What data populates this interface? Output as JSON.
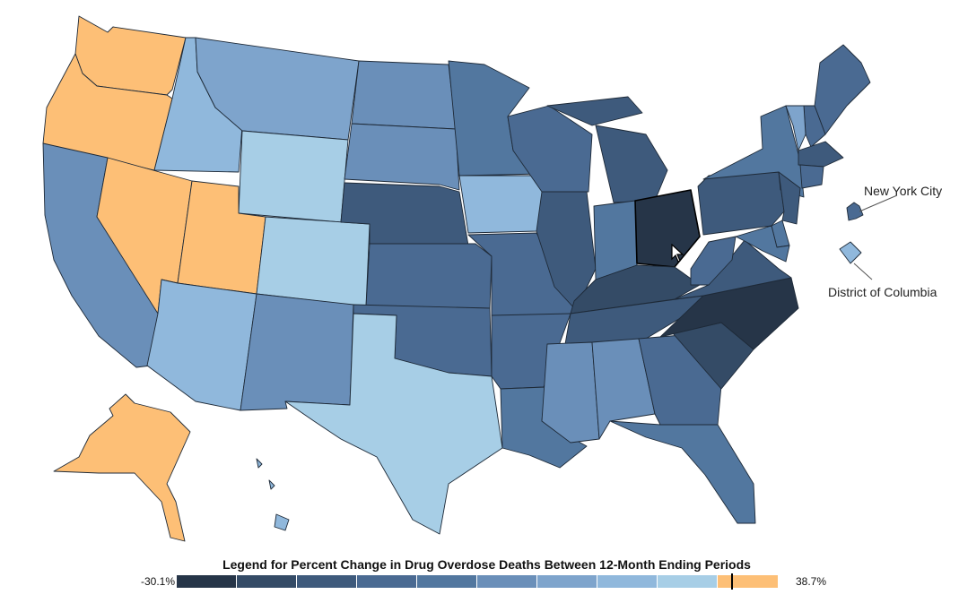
{
  "map": {
    "callouts": {
      "nyc": "New York City",
      "dc": "District of Columbia"
    },
    "colors": {
      "c1": "#263548",
      "c2": "#344b66",
      "c3": "#3e5a7c",
      "c4": "#4a6a92",
      "c5": "#52779f",
      "c6": "#6a8fb9",
      "c7": "#7ea4cc",
      "c8": "#90b8dc",
      "c9": "#a7cee6",
      "c10": "#fdbf76"
    },
    "states": [
      {
        "name": "WA",
        "color": "#fdbf76"
      },
      {
        "name": "OR",
        "color": "#fdbf76"
      },
      {
        "name": "CA",
        "color": "#6a8fb9"
      },
      {
        "name": "NV",
        "color": "#fdbf76"
      },
      {
        "name": "ID",
        "color": "#90b8dc"
      },
      {
        "name": "MT",
        "color": "#7ea4cc"
      },
      {
        "name": "WY",
        "color": "#a7cee6"
      },
      {
        "name": "UT",
        "color": "#fdbf76"
      },
      {
        "name": "AZ",
        "color": "#90b8dc"
      },
      {
        "name": "CO",
        "color": "#a7cee6"
      },
      {
        "name": "NM",
        "color": "#6a8fb9"
      },
      {
        "name": "ND",
        "color": "#6a8fb9"
      },
      {
        "name": "SD",
        "color": "#6a8fb9"
      },
      {
        "name": "NE",
        "color": "#3e5a7c"
      },
      {
        "name": "KS",
        "color": "#4a6a92"
      },
      {
        "name": "OK",
        "color": "#4a6a92"
      },
      {
        "name": "TX",
        "color": "#a7cee6"
      },
      {
        "name": "MN",
        "color": "#52779f"
      },
      {
        "name": "IA",
        "color": "#90b8dc"
      },
      {
        "name": "MO",
        "color": "#4a6a92"
      },
      {
        "name": "AR",
        "color": "#4a6a92"
      },
      {
        "name": "LA",
        "color": "#52779f"
      },
      {
        "name": "WI",
        "color": "#4a6a92"
      },
      {
        "name": "IL",
        "color": "#3e5a7c"
      },
      {
        "name": "MI",
        "color": "#3e5a7c"
      },
      {
        "name": "IN",
        "color": "#52779f"
      },
      {
        "name": "OH",
        "color": "#263548"
      },
      {
        "name": "KY",
        "color": "#344b66"
      },
      {
        "name": "TN",
        "color": "#3e5a7c"
      },
      {
        "name": "MS",
        "color": "#6a8fb9"
      },
      {
        "name": "AL",
        "color": "#6a8fb9"
      },
      {
        "name": "GA",
        "color": "#4a6a92"
      },
      {
        "name": "FL",
        "color": "#52779f"
      },
      {
        "name": "SC",
        "color": "#344b66"
      },
      {
        "name": "NC",
        "color": "#263548"
      },
      {
        "name": "VA",
        "color": "#3e5a7c"
      },
      {
        "name": "WV",
        "color": "#4a6a92"
      },
      {
        "name": "PA",
        "color": "#3e5a7c"
      },
      {
        "name": "NY",
        "color": "#52779f"
      },
      {
        "name": "ME",
        "color": "#4a6a92"
      },
      {
        "name": "VT",
        "color": "#7ea4cc"
      },
      {
        "name": "NH",
        "color": "#4a6a92"
      },
      {
        "name": "MA",
        "color": "#3e5a7c"
      },
      {
        "name": "CT",
        "color": "#4a6a92"
      },
      {
        "name": "NJ",
        "color": "#3e5a7c"
      },
      {
        "name": "DE",
        "color": "#52779f"
      },
      {
        "name": "MD",
        "color": "#52779f"
      },
      {
        "name": "AK",
        "color": "#fdbf76"
      },
      {
        "name": "HI",
        "color": "#90b8dc"
      },
      {
        "name": "NYC",
        "color": "#4a6a92"
      },
      {
        "name": "DC",
        "color": "#90b8dc"
      }
    ]
  },
  "legend": {
    "title": "Legend for Percent Change in Drug Overdose Deaths Between 12-Month Ending Periods",
    "min_label": "-30.1%",
    "max_label": "38.7%",
    "swatches": [
      "#263548",
      "#344b66",
      "#3e5a7c",
      "#4a6a92",
      "#52779f",
      "#6a8fb9",
      "#7ea4cc",
      "#90b8dc",
      "#a7cee6",
      "#fdbf76"
    ]
  }
}
